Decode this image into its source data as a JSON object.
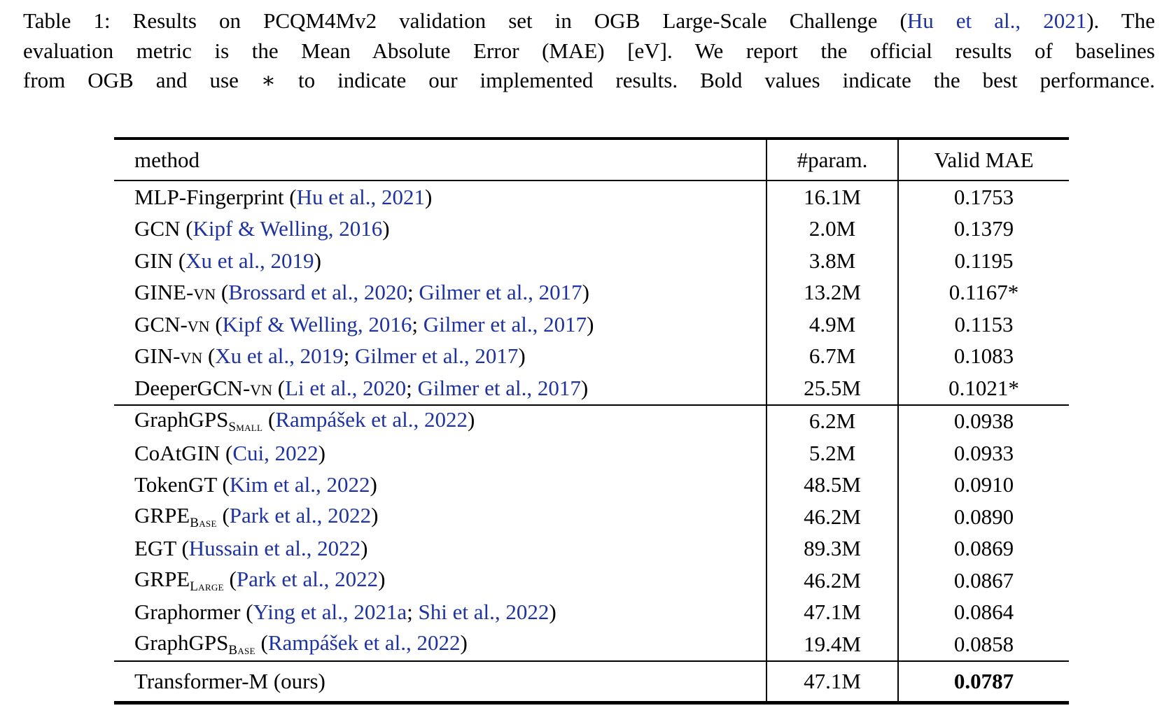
{
  "colors": {
    "citation_blue": "#1e339f",
    "text_black": "#000000"
  },
  "caption": {
    "lines": [
      {
        "segments": [
          {
            "k": "t",
            "x": "Table 1: Results on PCQM4Mv2 validation set in OGB Large-Scale Challenge ("
          },
          {
            "k": "c",
            "x": "Hu et al., 2021"
          },
          {
            "k": "t",
            "x": "). The"
          }
        ]
      },
      {
        "segments": [
          {
            "k": "t",
            "x": "evaluation metric is the Mean Absolute Error (MAE) [eV]. We report the official results of baselines"
          }
        ]
      },
      {
        "segments": [
          {
            "k": "t",
            "x": "from OGB and use ∗ to indicate our implemented results. Bold values indicate the best performance."
          }
        ]
      }
    ]
  },
  "table": {
    "headers": [
      "method",
      "#param.",
      "Valid MAE"
    ],
    "groups": [
      {
        "rows": [
          {
            "method": [
              {
                "k": "t",
                "x": "MLP-Fingerprint ("
              },
              {
                "k": "c",
                "x": "Hu et al., 2021"
              },
              {
                "k": "t",
                "x": ")"
              }
            ],
            "params": "16.1M",
            "mae": "0.1753",
            "bold": false
          },
          {
            "method": [
              {
                "k": "t",
                "x": "GCN ("
              },
              {
                "k": "c",
                "x": "Kipf & Welling, 2016"
              },
              {
                "k": "t",
                "x": ")"
              }
            ],
            "params": "2.0M",
            "mae": "0.1379",
            "bold": false
          },
          {
            "method": [
              {
                "k": "t",
                "x": "GIN ("
              },
              {
                "k": "c",
                "x": "Xu et al., 2019"
              },
              {
                "k": "t",
                "x": ")"
              }
            ],
            "params": "3.8M",
            "mae": "0.1195",
            "bold": false
          },
          {
            "method": [
              {
                "k": "t",
                "x": "GINE-"
              },
              {
                "k": "sc",
                "x": "vn"
              },
              {
                "k": "t",
                "x": " ("
              },
              {
                "k": "c",
                "x": "Brossard et al., 2020"
              },
              {
                "k": "t",
                "x": "; "
              },
              {
                "k": "c",
                "x": "Gilmer et al., 2017"
              },
              {
                "k": "t",
                "x": ")"
              }
            ],
            "params": "13.2M",
            "mae": "0.1167*",
            "bold": false
          },
          {
            "method": [
              {
                "k": "t",
                "x": "GCN-"
              },
              {
                "k": "sc",
                "x": "vn"
              },
              {
                "k": "t",
                "x": " ("
              },
              {
                "k": "c",
                "x": "Kipf & Welling, 2016"
              },
              {
                "k": "t",
                "x": "; "
              },
              {
                "k": "c",
                "x": "Gilmer et al., 2017"
              },
              {
                "k": "t",
                "x": ")"
              }
            ],
            "params": "4.9M",
            "mae": "0.1153",
            "bold": false
          },
          {
            "method": [
              {
                "k": "t",
                "x": "GIN-"
              },
              {
                "k": "sc",
                "x": "vn"
              },
              {
                "k": "t",
                "x": " ("
              },
              {
                "k": "c",
                "x": "Xu et al., 2019"
              },
              {
                "k": "t",
                "x": "; "
              },
              {
                "k": "c",
                "x": "Gilmer et al., 2017"
              },
              {
                "k": "t",
                "x": ")"
              }
            ],
            "params": "6.7M",
            "mae": "0.1083",
            "bold": false
          },
          {
            "method": [
              {
                "k": "t",
                "x": "DeeperGCN-"
              },
              {
                "k": "sc",
                "x": "vn"
              },
              {
                "k": "t",
                "x": " ("
              },
              {
                "k": "c",
                "x": "Li et al., 2020"
              },
              {
                "k": "t",
                "x": "; "
              },
              {
                "k": "c",
                "x": "Gilmer et al., 2017"
              },
              {
                "k": "t",
                "x": ")"
              }
            ],
            "params": "25.5M",
            "mae": "0.1021*",
            "bold": false
          }
        ]
      },
      {
        "rows": [
          {
            "method": [
              {
                "k": "t",
                "x": "GraphGPS"
              },
              {
                "k": "sub",
                "x": "Small"
              },
              {
                "k": "t",
                "x": " ("
              },
              {
                "k": "c",
                "x": "Rampášek et al., 2022"
              },
              {
                "k": "t",
                "x": ")"
              }
            ],
            "params": "6.2M",
            "mae": "0.0938",
            "bold": false
          },
          {
            "method": [
              {
                "k": "t",
                "x": "CoAtGIN ("
              },
              {
                "k": "c",
                "x": "Cui, 2022"
              },
              {
                "k": "t",
                "x": ")"
              }
            ],
            "params": "5.2M",
            "mae": "0.0933",
            "bold": false
          },
          {
            "method": [
              {
                "k": "t",
                "x": "TokenGT ("
              },
              {
                "k": "c",
                "x": "Kim et al., 2022"
              },
              {
                "k": "t",
                "x": ")"
              }
            ],
            "params": "48.5M",
            "mae": "0.0910",
            "bold": false
          },
          {
            "method": [
              {
                "k": "t",
                "x": "GRPE"
              },
              {
                "k": "sub",
                "x": "Base"
              },
              {
                "k": "t",
                "x": " ("
              },
              {
                "k": "c",
                "x": "Park et al., 2022"
              },
              {
                "k": "t",
                "x": ")"
              }
            ],
            "params": "46.2M",
            "mae": "0.0890",
            "bold": false
          },
          {
            "method": [
              {
                "k": "t",
                "x": "EGT ("
              },
              {
                "k": "c",
                "x": "Hussain et al., 2022"
              },
              {
                "k": "t",
                "x": ")"
              }
            ],
            "params": "89.3M",
            "mae": "0.0869",
            "bold": false
          },
          {
            "method": [
              {
                "k": "t",
                "x": "GRPE"
              },
              {
                "k": "sub",
                "x": "Large"
              },
              {
                "k": "t",
                "x": " ("
              },
              {
                "k": "c",
                "x": "Park et al., 2022"
              },
              {
                "k": "t",
                "x": ")"
              }
            ],
            "params": "46.2M",
            "mae": "0.0867",
            "bold": false
          },
          {
            "method": [
              {
                "k": "t",
                "x": "Graphormer ("
              },
              {
                "k": "c",
                "x": "Ying et al., 2021a"
              },
              {
                "k": "t",
                "x": "; "
              },
              {
                "k": "c",
                "x": "Shi et al., 2022"
              },
              {
                "k": "t",
                "x": ")"
              }
            ],
            "params": "47.1M",
            "mae": "0.0864",
            "bold": false
          },
          {
            "method": [
              {
                "k": "t",
                "x": "GraphGPS"
              },
              {
                "k": "sub",
                "x": "Base"
              },
              {
                "k": "t",
                "x": " ("
              },
              {
                "k": "c",
                "x": "Rampášek et al., 2022"
              },
              {
                "k": "t",
                "x": ")"
              }
            ],
            "params": "19.4M",
            "mae": "0.0858",
            "bold": false
          }
        ]
      },
      {
        "rows": [
          {
            "method": [
              {
                "k": "t",
                "x": "Transformer-M (ours)"
              }
            ],
            "params": "47.1M",
            "mae": "0.0787",
            "bold": true
          }
        ]
      }
    ]
  }
}
